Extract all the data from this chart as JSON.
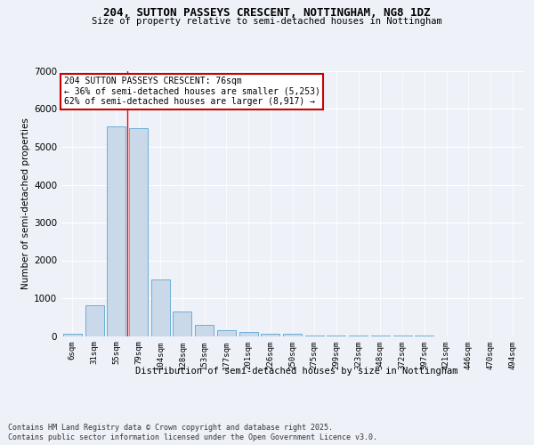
{
  "title1": "204, SUTTON PASSEYS CRESCENT, NOTTINGHAM, NG8 1DZ",
  "title2": "Size of property relative to semi-detached houses in Nottingham",
  "xlabel": "Distribution of semi-detached houses by size in Nottingham",
  "ylabel": "Number of semi-detached properties",
  "categories": [
    "6sqm",
    "31sqm",
    "55sqm",
    "79sqm",
    "104sqm",
    "128sqm",
    "153sqm",
    "177sqm",
    "201sqm",
    "226sqm",
    "250sqm",
    "275sqm",
    "299sqm",
    "323sqm",
    "348sqm",
    "372sqm",
    "397sqm",
    "421sqm",
    "446sqm",
    "470sqm",
    "494sqm"
  ],
  "values": [
    50,
    810,
    5530,
    5490,
    1490,
    650,
    295,
    145,
    100,
    65,
    50,
    10,
    5,
    3,
    2,
    1,
    1,
    0,
    0,
    0,
    0
  ],
  "bar_color": "#c9d9ea",
  "bar_edge_color": "#6baed6",
  "red_line_x": 2.5,
  "annotation_text": "204 SUTTON PASSEYS CRESCENT: 76sqm\n← 36% of semi-detached houses are smaller (5,253)\n62% of semi-detached houses are larger (8,917) →",
  "annotation_box_color": "#ffffff",
  "annotation_box_edge": "#cc0000",
  "footer1": "Contains HM Land Registry data © Crown copyright and database right 2025.",
  "footer2": "Contains public sector information licensed under the Open Government Licence v3.0.",
  "bg_color": "#eef2f8",
  "ylim": [
    0,
    7000
  ],
  "yticks": [
    0,
    1000,
    2000,
    3000,
    4000,
    5000,
    6000,
    7000
  ]
}
